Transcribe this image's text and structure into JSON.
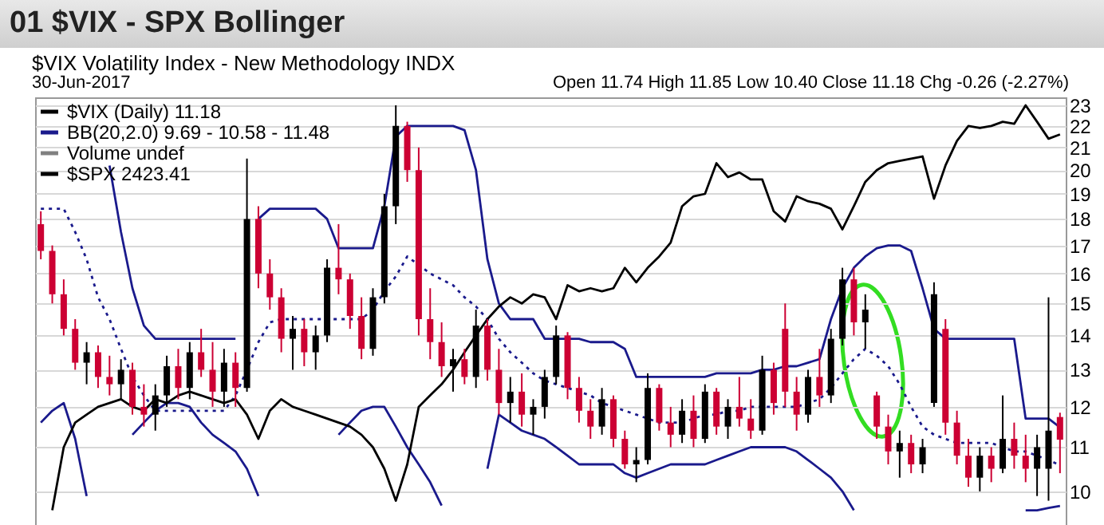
{
  "chart_data": {
    "type": "candlestick",
    "title": "01 $VIX - SPX Bollinger",
    "subtitle": "$VIX Volatility Index - New Methodology INDX",
    "annotations": [
      "30-Jun-2017",
      "Open 11.74 High 11.85 Low 10.40 Close 11.18 Chg -0.26 (-2.27%)"
    ],
    "categories": [
      null,
      null,
      null,
      null,
      null,
      null,
      null,
      null,
      null,
      null,
      null,
      null,
      null,
      null,
      null,
      null,
      null,
      null,
      null,
      null,
      null,
      null,
      null,
      null,
      null,
      null,
      null,
      null,
      null,
      null,
      null,
      null,
      null,
      null,
      null,
      null,
      null,
      null,
      null,
      null,
      null,
      null,
      null,
      null,
      null,
      null,
      null,
      null,
      null,
      null,
      null,
      null,
      null,
      null,
      null,
      null,
      null,
      null,
      null,
      null,
      null,
      null,
      null,
      null,
      null,
      null,
      null,
      null,
      null,
      null,
      null,
      null,
      null,
      null,
      null,
      null,
      null,
      null,
      null,
      null,
      null,
      null,
      null,
      null,
      null,
      null,
      null,
      null,
      null,
      null
    ],
    "log": "y",
    "ylim": [
      9.3,
      23.4
    ],
    "yticks": [
      10,
      11,
      12,
      13,
      14,
      15,
      16,
      17,
      18,
      19,
      20,
      21,
      22,
      23
    ],
    "grid": "y",
    "legend": "top left",
    "series": [
      {
        "name": "$VIX (Daily) 11.18",
        "color": "#000000",
        "ohlc": [
          [
            17.8,
            18.3,
            16.5,
            16.8
          ],
          [
            16.8,
            17.0,
            15.0,
            15.3
          ],
          [
            15.3,
            15.8,
            14.0,
            14.2
          ],
          [
            14.2,
            14.5,
            13.0,
            13.2
          ],
          [
            13.2,
            13.8,
            12.6,
            13.5
          ],
          [
            13.5,
            13.7,
            12.5,
            12.8
          ],
          [
            12.8,
            13.4,
            12.3,
            12.6
          ],
          [
            12.6,
            13.3,
            12.2,
            13.0
          ],
          [
            13.0,
            13.2,
            11.8,
            12.0
          ],
          [
            12.0,
            12.6,
            11.5,
            11.8
          ],
          [
            11.8,
            12.6,
            11.4,
            12.3
          ],
          [
            12.3,
            13.4,
            12.0,
            13.1
          ],
          [
            13.1,
            13.6,
            12.2,
            12.5
          ],
          [
            12.5,
            13.8,
            12.2,
            13.5
          ],
          [
            13.5,
            14.2,
            12.8,
            13.0
          ],
          [
            13.0,
            13.8,
            12.0,
            12.4
          ],
          [
            12.4,
            13.6,
            12.0,
            13.2
          ],
          [
            13.2,
            13.5,
            12.0,
            12.5
          ],
          [
            12.5,
            20.5,
            12.4,
            18.0
          ],
          [
            18.0,
            18.5,
            15.5,
            16.0
          ],
          [
            16.0,
            16.5,
            14.8,
            15.2
          ],
          [
            15.2,
            15.5,
            13.5,
            13.9
          ],
          [
            13.9,
            14.6,
            13.0,
            14.2
          ],
          [
            14.2,
            14.5,
            13.1,
            13.5
          ],
          [
            13.5,
            14.3,
            13.0,
            14.0
          ],
          [
            14.0,
            16.5,
            13.8,
            16.2
          ],
          [
            16.2,
            17.8,
            15.3,
            15.8
          ],
          [
            15.8,
            16.0,
            14.2,
            14.6
          ],
          [
            14.6,
            15.2,
            13.3,
            13.6
          ],
          [
            13.6,
            15.5,
            13.4,
            15.2
          ],
          [
            15.2,
            19.0,
            15.0,
            18.5
          ],
          [
            18.5,
            23.0,
            17.8,
            22.0
          ],
          [
            22.0,
            22.2,
            19.5,
            20.0
          ],
          [
            20.0,
            21.0,
            14.0,
            14.5
          ],
          [
            14.5,
            15.5,
            13.3,
            13.8
          ],
          [
            13.8,
            14.4,
            12.8,
            13.1
          ],
          [
            13.1,
            13.6,
            12.4,
            13.3
          ],
          [
            13.3,
            13.6,
            12.6,
            12.8
          ],
          [
            12.8,
            14.8,
            12.5,
            14.3
          ],
          [
            14.3,
            14.5,
            12.7,
            13.0
          ],
          [
            13.0,
            13.6,
            11.8,
            12.1
          ],
          [
            12.1,
            12.8,
            11.6,
            12.4
          ],
          [
            12.4,
            12.9,
            11.5,
            11.8
          ],
          [
            11.8,
            12.2,
            11.3,
            12.0
          ],
          [
            12.0,
            13.0,
            11.7,
            12.8
          ],
          [
            12.8,
            14.3,
            12.6,
            14.0
          ],
          [
            14.0,
            14.1,
            12.2,
            12.5
          ],
          [
            12.5,
            12.8,
            11.6,
            11.9
          ],
          [
            11.9,
            12.2,
            11.2,
            11.5
          ],
          [
            11.5,
            12.5,
            11.3,
            12.2
          ],
          [
            12.2,
            12.3,
            11.0,
            11.2
          ],
          [
            11.2,
            11.4,
            10.5,
            10.6
          ],
          [
            10.6,
            11.0,
            10.2,
            10.7
          ],
          [
            10.7,
            12.9,
            10.6,
            12.5
          ],
          [
            12.5,
            12.6,
            11.4,
            11.6
          ],
          [
            11.6,
            12.0,
            11.0,
            11.3
          ],
          [
            11.3,
            12.2,
            11.1,
            11.9
          ],
          [
            11.9,
            12.3,
            11.0,
            11.2
          ],
          [
            11.2,
            12.6,
            11.1,
            12.4
          ],
          [
            12.4,
            12.5,
            11.3,
            11.5
          ],
          [
            11.5,
            12.2,
            11.2,
            12.0
          ],
          [
            12.0,
            12.8,
            11.5,
            11.7
          ],
          [
            11.7,
            12.2,
            11.2,
            11.4
          ],
          [
            11.4,
            13.4,
            11.3,
            13.0
          ],
          [
            13.0,
            13.2,
            11.8,
            12.1
          ],
          [
            14.2,
            15.0,
            12.0,
            12.4
          ],
          [
            12.4,
            12.8,
            11.4,
            11.8
          ],
          [
            11.8,
            13.0,
            11.6,
            12.8
          ],
          [
            12.8,
            13.6,
            12.0,
            12.3
          ],
          [
            12.3,
            14.2,
            12.1,
            13.9
          ],
          [
            13.9,
            16.2,
            13.7,
            15.8
          ],
          [
            15.8,
            16.2,
            14.0,
            14.4
          ],
          [
            14.4,
            15.3,
            13.6,
            14.8
          ],
          [
            12.3,
            12.4,
            11.2,
            11.5
          ],
          [
            11.5,
            11.8,
            10.6,
            10.9
          ],
          [
            10.9,
            11.4,
            10.3,
            11.1
          ],
          [
            11.1,
            11.3,
            10.4,
            10.6
          ],
          [
            10.6,
            11.2,
            10.4,
            11.0
          ],
          [
            12.1,
            15.7,
            12.0,
            15.3
          ],
          [
            14.2,
            14.5,
            11.3,
            11.6
          ],
          [
            11.6,
            11.9,
            10.6,
            10.8
          ],
          [
            10.8,
            11.2,
            10.1,
            10.3
          ],
          [
            10.3,
            11.0,
            10.0,
            10.8
          ],
          [
            10.8,
            11.0,
            10.2,
            10.5
          ],
          [
            10.5,
            12.3,
            10.4,
            11.2
          ],
          [
            11.2,
            11.6,
            10.5,
            10.8
          ],
          [
            10.8,
            11.3,
            10.2,
            10.5
          ],
          [
            10.5,
            11.3,
            9.9,
            11.0
          ],
          [
            10.5,
            15.2,
            9.8,
            11.4
          ],
          [
            11.74,
            11.85,
            10.4,
            11.18
          ]
        ],
        "colors": [
          "#cc0033",
          "#cc0033",
          "#cc0033",
          "#cc0033",
          "#000000",
          "#cc0033",
          "#cc0033",
          "#000000",
          "#cc0033",
          "#cc0033",
          "#000000",
          "#000000",
          "#cc0033",
          "#000000",
          "#cc0033",
          "#cc0033",
          "#000000",
          "#cc0033",
          "#000000",
          "#cc0033",
          "#cc0033",
          "#cc0033",
          "#000000",
          "#cc0033",
          "#000000",
          "#000000",
          "#cc0033",
          "#cc0033",
          "#cc0033",
          "#000000",
          "#000000",
          "#000000",
          "#cc0033",
          "#cc0033",
          "#cc0033",
          "#cc0033",
          "#000000",
          "#cc0033",
          "#000000",
          "#cc0033",
          "#cc0033",
          "#000000",
          "#cc0033",
          "#000000",
          "#000000",
          "#000000",
          "#cc0033",
          "#cc0033",
          "#cc0033",
          "#000000",
          "#cc0033",
          "#cc0033",
          "#000000",
          "#000000",
          "#cc0033",
          "#cc0033",
          "#000000",
          "#cc0033",
          "#000000",
          "#cc0033",
          "#000000",
          "#cc0033",
          "#cc0033",
          "#000000",
          "#cc0033",
          "#cc0033",
          "#cc0033",
          "#000000",
          "#cc0033",
          "#000000",
          "#000000",
          "#cc0033",
          "#000000",
          "#cc0033",
          "#cc0033",
          "#000000",
          "#cc0033",
          "#000000",
          "#000000",
          "#cc0033",
          "#cc0033",
          "#cc0033",
          "#000000",
          "#cc0033",
          "#000000",
          "#cc0033",
          "#cc0033",
          "#000000",
          "#000000",
          "#cc0033"
        ]
      },
      {
        "name": "BB(20,2.0) 9.69 - 10.58 - 11.48",
        "type": "line",
        "color": "#1a1a8c",
        "line_style": "solid",
        "values": [
          null,
          null,
          null,
          null,
          null,
          null,
          20.2,
          17.5,
          15.5,
          14.3,
          13.9,
          13.9,
          13.9,
          13.9,
          13.9,
          13.9,
          13.9,
          13.9,
          null,
          18.0,
          18.4,
          18.4,
          18.4,
          18.4,
          18.4,
          18.0,
          16.9,
          16.9,
          16.9,
          16.9,
          18.5,
          21.5,
          22.0,
          22.0,
          22.0,
          22.0,
          22.0,
          21.8,
          20.0,
          16.5,
          15.0,
          14.5,
          14.5,
          14.5,
          13.9,
          13.9,
          13.9,
          13.9,
          13.8,
          13.8,
          13.8,
          13.6,
          12.8,
          12.8,
          12.8,
          12.8,
          12.8,
          12.8,
          12.8,
          12.9,
          12.9,
          12.9,
          12.9,
          13.0,
          13.0,
          13.1,
          13.1,
          13.2,
          13.3,
          14.5,
          15.5,
          16.2,
          16.6,
          16.9,
          17.0,
          17.0,
          16.8,
          15.5,
          14.2,
          13.9,
          13.9,
          13.9,
          13.9,
          13.9,
          13.9,
          13.9,
          11.7,
          11.7,
          11.7,
          11.48
        ]
      },
      {
        "type": "line",
        "color": "#1a1a8c",
        "line_style": "dotted",
        "values": [
          18.4,
          18.4,
          18.4,
          17.5,
          16.5,
          15.2,
          14.5,
          13.6,
          12.8,
          12.3,
          11.9,
          11.9,
          11.9,
          11.9,
          11.9,
          11.9,
          11.9,
          12.3,
          13.0,
          13.8,
          14.4,
          14.5,
          14.5,
          14.5,
          14.5,
          14.5,
          14.5,
          14.5,
          14.5,
          14.8,
          15.4,
          15.9,
          16.6,
          16.3,
          16.0,
          15.8,
          15.6,
          15.2,
          14.9,
          14.5,
          13.9,
          13.5,
          13.2,
          12.9,
          12.7,
          12.6,
          12.5,
          12.4,
          12.3,
          12.1,
          12.0,
          11.9,
          11.8,
          11.7,
          11.6,
          11.6,
          11.6,
          11.7,
          11.8,
          11.8,
          11.9,
          11.9,
          12.0,
          12.0,
          12.0,
          12.0,
          12.0,
          12.1,
          12.2,
          12.5,
          12.9,
          13.3,
          13.6,
          13.4,
          13.1,
          12.6,
          12.0,
          11.5,
          11.3,
          11.2,
          11.1,
          11.1,
          11.1,
          11.1,
          11.0,
          10.9,
          10.9,
          10.8,
          10.7,
          10.58
        ]
      },
      {
        "type": "line",
        "color": "#1a1a8c",
        "line_style": "solid",
        "values": [
          11.6,
          11.9,
          12.1,
          11.2,
          9.9,
          null,
          null,
          null,
          11.3,
          11.6,
          11.9,
          12.1,
          12.1,
          12.0,
          11.6,
          11.3,
          11.1,
          10.9,
          10.5,
          9.9,
          null,
          null,
          null,
          null,
          null,
          null,
          11.3,
          11.6,
          11.9,
          12.0,
          12.0,
          11.5,
          11.0,
          10.6,
          10.2,
          9.7,
          null,
          null,
          null,
          10.5,
          11.8,
          11.6,
          11.4,
          11.3,
          11.2,
          11.0,
          10.8,
          10.6,
          10.6,
          10.6,
          10.6,
          10.4,
          10.3,
          10.4,
          10.5,
          10.6,
          10.6,
          10.6,
          10.6,
          10.7,
          10.8,
          10.9,
          11.0,
          11.0,
          11.0,
          11.0,
          10.9,
          10.7,
          10.5,
          10.3,
          10.0,
          9.6,
          null,
          null,
          null,
          null,
          null,
          null,
          null,
          null,
          null,
          null,
          null,
          null,
          null,
          null,
          9.6,
          9.6,
          9.65,
          9.69
        ]
      },
      {
        "name": "Volume undef",
        "type": "bar",
        "color": "#808080",
        "values": [
          null,
          null,
          null,
          null,
          null,
          null,
          null,
          null,
          null,
          null,
          null,
          null,
          null,
          null,
          null,
          null,
          null,
          null,
          null,
          null,
          null,
          null,
          null,
          null,
          null,
          null,
          null,
          null,
          null,
          null,
          null,
          null,
          null,
          null,
          null,
          null,
          null,
          null,
          null,
          null,
          null,
          null,
          null,
          null,
          null,
          null,
          null,
          null,
          null,
          null,
          null,
          null,
          null,
          null,
          null,
          null,
          null,
          null,
          null,
          null,
          null,
          null,
          null,
          null,
          null,
          null,
          null,
          null,
          null,
          null,
          null,
          null,
          null,
          null,
          null,
          null,
          null,
          null,
          null,
          null,
          null,
          null,
          null,
          null,
          null,
          null,
          null,
          null,
          null,
          null
        ]
      },
      {
        "name": "$SPX 2423.41",
        "type": "line",
        "color": "#000000",
        "line_style": "solid",
        "values": [
          null,
          9.6,
          11.0,
          11.6,
          11.8,
          12.0,
          12.1,
          12.2,
          12.0,
          11.9,
          12.2,
          12.1,
          12.3,
          12.4,
          12.3,
          12.2,
          12.1,
          12.2,
          11.8,
          11.2,
          11.9,
          12.2,
          12.0,
          11.9,
          11.8,
          11.7,
          11.6,
          11.5,
          11.3,
          11.0,
          10.5,
          9.8,
          10.6,
          12.0,
          12.3,
          12.6,
          13.0,
          13.5,
          14.0,
          14.5,
          14.9,
          15.2,
          15.0,
          15.3,
          15.2,
          14.5,
          15.6,
          15.4,
          15.5,
          15.4,
          15.5,
          16.2,
          15.7,
          16.2,
          16.6,
          17.1,
          18.5,
          18.9,
          19.0,
          20.3,
          19.7,
          19.9,
          19.6,
          19.6,
          18.3,
          17.9,
          18.9,
          18.7,
          18.6,
          18.4,
          17.6,
          18.5,
          19.5,
          20.0,
          20.3,
          20.4,
          20.5,
          20.6,
          18.8,
          20.2,
          21.3,
          22.0,
          21.9,
          22.0,
          22.2,
          22.1,
          23.0,
          22.2,
          21.4,
          21.6
        ]
      }
    ]
  }
}
